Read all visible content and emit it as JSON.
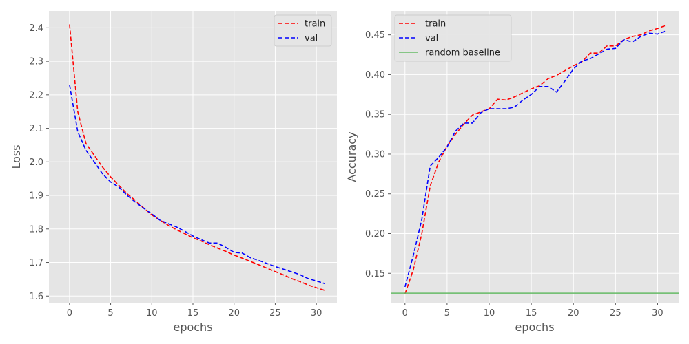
{
  "chart_data": [
    {
      "type": "line",
      "xlabel": "epochs",
      "ylabel": "Loss",
      "xlim": [
        -2.5,
        32.5
      ],
      "ylim": [
        1.58,
        2.45
      ],
      "x_ticks": [
        0,
        5,
        10,
        15,
        20,
        25,
        30
      ],
      "y_ticks": [
        1.6,
        1.7,
        1.8,
        1.9,
        2.0,
        2.1,
        2.2,
        2.3,
        2.4
      ],
      "x_tick_labels": [
        "0",
        "5",
        "10",
        "15",
        "20",
        "25",
        "30"
      ],
      "y_tick_labels": [
        "1.6",
        "1.7",
        "1.8",
        "1.9",
        "2.0",
        "2.1",
        "2.2",
        "2.3",
        "2.4"
      ],
      "legend_position": "top-right",
      "grid": true,
      "series": [
        {
          "name": "train",
          "color": "#ff0000",
          "dash": "dashed",
          "x": [
            0,
            1,
            2,
            3,
            4,
            5,
            6,
            7,
            8,
            9,
            10,
            11,
            12,
            13,
            14,
            15,
            16,
            17,
            18,
            19,
            20,
            21,
            22,
            23,
            24,
            25,
            26,
            27,
            28,
            29,
            30,
            31
          ],
          "values": [
            2.41,
            2.15,
            2.055,
            2.02,
            1.985,
            1.955,
            1.93,
            1.905,
            1.885,
            1.863,
            1.842,
            1.826,
            1.811,
            1.798,
            1.786,
            1.774,
            1.764,
            1.753,
            1.743,
            1.733,
            1.722,
            1.713,
            1.703,
            1.693,
            1.683,
            1.673,
            1.663,
            1.652,
            1.643,
            1.633,
            1.625,
            1.617
          ]
        },
        {
          "name": "val",
          "color": "#0000ff",
          "dash": "dashed",
          "x": [
            0,
            1,
            2,
            3,
            4,
            5,
            6,
            7,
            8,
            9,
            10,
            11,
            12,
            13,
            14,
            15,
            16,
            17,
            18,
            19,
            20,
            21,
            22,
            23,
            24,
            25,
            26,
            27,
            28,
            29,
            30,
            31
          ],
          "values": [
            2.23,
            2.09,
            2.035,
            2.0,
            1.965,
            1.94,
            1.925,
            1.9,
            1.88,
            1.862,
            1.845,
            1.826,
            1.816,
            1.806,
            1.793,
            1.779,
            1.768,
            1.758,
            1.758,
            1.745,
            1.73,
            1.728,
            1.714,
            1.706,
            1.697,
            1.688,
            1.68,
            1.672,
            1.664,
            1.652,
            1.645,
            1.637
          ]
        }
      ]
    },
    {
      "type": "line",
      "xlabel": "epochs",
      "ylabel": "Accuracy",
      "xlim": [
        -1.7,
        32.5
      ],
      "ylim": [
        0.113,
        0.48
      ],
      "x_ticks": [
        0,
        5,
        10,
        15,
        20,
        25,
        30
      ],
      "y_ticks": [
        0.15,
        0.2,
        0.25,
        0.3,
        0.35,
        0.4,
        0.45
      ],
      "x_tick_labels": [
        "0",
        "5",
        "10",
        "15",
        "20",
        "25",
        "30"
      ],
      "y_tick_labels": [
        "0.15",
        "0.20",
        "0.25",
        "0.30",
        "0.35",
        "0.40",
        "0.45"
      ],
      "legend_position": "top-left",
      "grid": true,
      "series": [
        {
          "name": "train",
          "color": "#ff0000",
          "dash": "dashed",
          "x": [
            0,
            1,
            2,
            3,
            4,
            5,
            6,
            7,
            8,
            9,
            10,
            11,
            12,
            13,
            14,
            15,
            16,
            17,
            18,
            19,
            20,
            21,
            22,
            23,
            24,
            25,
            26,
            27,
            28,
            29,
            30,
            31
          ],
          "values": [
            0.124,
            0.155,
            0.2,
            0.26,
            0.29,
            0.31,
            0.325,
            0.338,
            0.349,
            0.353,
            0.357,
            0.369,
            0.368,
            0.372,
            0.377,
            0.382,
            0.386,
            0.395,
            0.399,
            0.405,
            0.411,
            0.416,
            0.427,
            0.427,
            0.436,
            0.436,
            0.444,
            0.448,
            0.45,
            0.455,
            0.458,
            0.462
          ]
        },
        {
          "name": "val",
          "color": "#0000ff",
          "dash": "dashed",
          "x": [
            0,
            1,
            2,
            3,
            4,
            5,
            6,
            7,
            8,
            9,
            10,
            11,
            12,
            13,
            14,
            15,
            16,
            17,
            18,
            19,
            20,
            21,
            22,
            23,
            24,
            25,
            26,
            27,
            28,
            29,
            30,
            31
          ],
          "values": [
            0.133,
            0.173,
            0.218,
            0.285,
            0.296,
            0.309,
            0.329,
            0.339,
            0.339,
            0.352,
            0.357,
            0.357,
            0.357,
            0.359,
            0.368,
            0.375,
            0.385,
            0.385,
            0.378,
            0.392,
            0.407,
            0.417,
            0.42,
            0.426,
            0.432,
            0.433,
            0.444,
            0.441,
            0.448,
            0.452,
            0.451,
            0.455
          ]
        },
        {
          "name": "random baseline",
          "color": "#66bb66",
          "dash": "solid",
          "baseline": 0.125
        }
      ]
    }
  ]
}
